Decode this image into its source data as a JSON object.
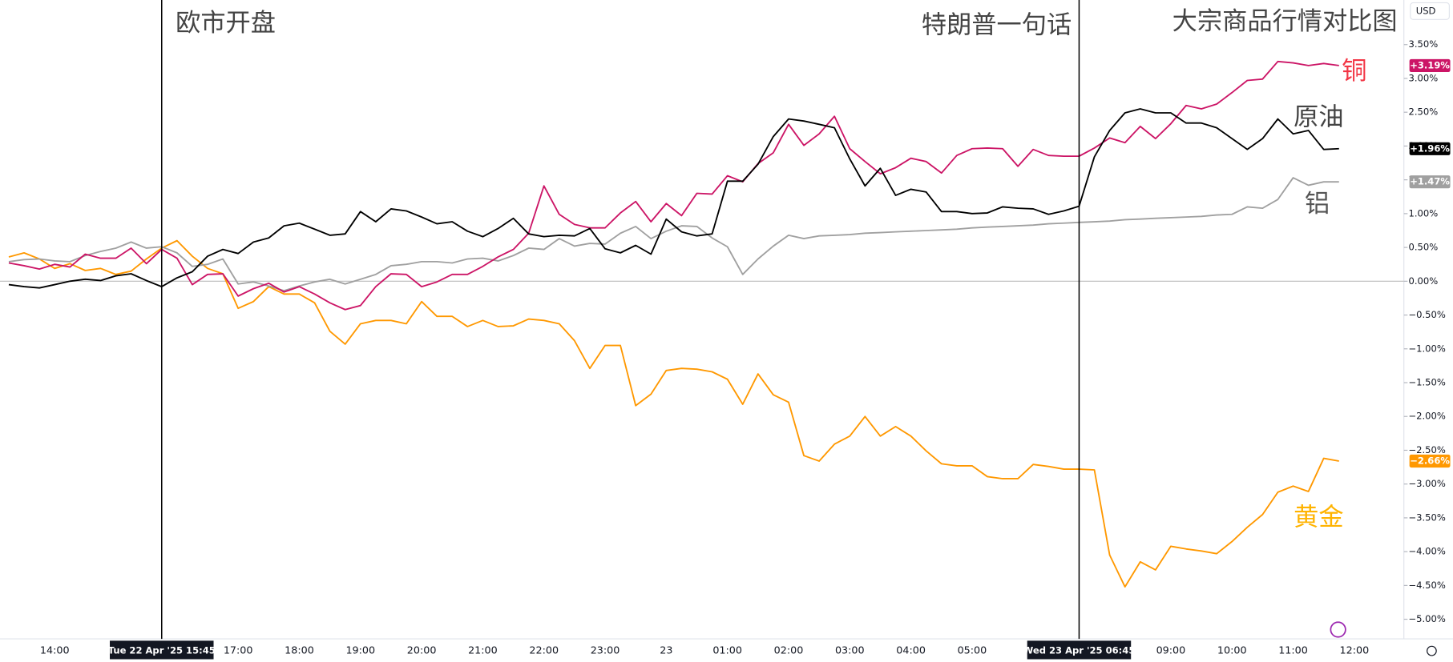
{
  "chart_data": {
    "type": "line",
    "title": "大宗商品行情对比图",
    "currency": "USD",
    "annotations": [
      {
        "text": "欧市开盘",
        "x": 10,
        "label": "Tue 22 Apr '25  15:45"
      },
      {
        "text": "特朗普一句话",
        "x": 70,
        "label": "Wed 23 Apr '25  06:45"
      }
    ],
    "categories": [
      null,
      null,
      null,
      "14:00",
      null,
      null,
      null,
      null,
      null,
      null,
      null,
      null,
      null,
      null,
      null,
      "17:00",
      null,
      null,
      null,
      "18:00",
      null,
      null,
      null,
      "19:00",
      null,
      null,
      null,
      "20:00",
      null,
      null,
      null,
      "21:00",
      null,
      null,
      null,
      "22:00",
      null,
      null,
      null,
      "23:00",
      null,
      null,
      null,
      "23",
      null,
      null,
      null,
      "01:00",
      null,
      null,
      null,
      "02:00",
      null,
      null,
      null,
      "03:00",
      null,
      null,
      null,
      "04:00",
      null,
      null,
      null,
      "05:00",
      null,
      null,
      null,
      null,
      null,
      null,
      null,
      null,
      null,
      null,
      null,
      null,
      "09:00",
      null,
      null,
      null,
      "10:00",
      null,
      null,
      null,
      "11:00",
      null,
      null,
      null,
      "12:00"
    ],
    "series": [
      {
        "name": "黄金",
        "color": "#ff9800",
        "label_color": "#ffb300",
        "last_label": "−2.66%",
        "values": [
          0.36,
          0.42,
          0.33,
          0.19,
          0.26,
          0.16,
          0.19,
          0.1,
          0.15,
          0.33,
          0.49,
          0.6,
          0.37,
          0.19,
          0.11,
          -0.4,
          -0.3,
          -0.08,
          -0.19,
          -0.19,
          -0.32,
          -0.74,
          -0.93,
          -0.63,
          -0.58,
          -0.58,
          -0.63,
          -0.3,
          -0.52,
          -0.52,
          -0.67,
          -0.58,
          -0.67,
          -0.66,
          -0.56,
          -0.58,
          -0.63,
          -0.88,
          -1.29,
          -0.95,
          -0.95,
          -1.84,
          -1.67,
          -1.32,
          -1.29,
          -1.3,
          -1.34,
          -1.45,
          -1.82,
          -1.37,
          -1.68,
          -1.79,
          -2.58,
          -2.66,
          -2.41,
          -2.29,
          -2.0,
          -2.29,
          -2.15,
          -2.29,
          -2.51,
          -2.7,
          -2.73,
          -2.73,
          -2.89,
          -2.92,
          -2.92,
          -2.71,
          -2.74,
          -2.78,
          -2.78,
          -2.79,
          -4.05,
          -4.52,
          -4.15,
          -4.27,
          -3.92,
          -3.96,
          -3.99,
          -4.03,
          -3.85,
          -3.64,
          -3.45,
          -3.12,
          -3.03,
          -3.11,
          -2.62,
          -2.66,
          null
        ]
      },
      {
        "name": "铝",
        "color": "#a0a0a0",
        "label_color": "#555555",
        "last_label": "+1.47%",
        "values": [
          0.29,
          0.32,
          0.33,
          0.3,
          0.29,
          0.38,
          0.44,
          0.49,
          0.58,
          0.49,
          0.51,
          0.42,
          0.22,
          0.25,
          0.33,
          -0.04,
          -0.01,
          -0.07,
          -0.14,
          -0.07,
          -0.01,
          0.03,
          -0.04,
          0.03,
          0.1,
          0.23,
          0.25,
          0.29,
          0.29,
          0.27,
          0.33,
          0.34,
          0.3,
          0.38,
          0.49,
          0.47,
          0.63,
          0.52,
          0.56,
          0.55,
          0.71,
          0.81,
          0.63,
          0.74,
          0.82,
          0.81,
          0.64,
          0.51,
          0.1,
          0.33,
          0.52,
          0.68,
          0.63,
          0.67,
          0.68,
          0.69,
          0.71,
          0.72,
          0.73,
          0.74,
          0.75,
          0.76,
          0.77,
          0.79,
          0.8,
          0.81,
          0.82,
          0.83,
          0.85,
          0.86,
          0.87,
          0.88,
          0.89,
          0.91,
          0.92,
          0.93,
          0.94,
          0.95,
          0.96,
          0.98,
          0.99,
          1.1,
          1.08,
          1.21,
          1.53,
          1.42,
          1.47,
          1.47,
          null
        ]
      },
      {
        "name": "铜",
        "color": "#cc1566",
        "label_color": "#f23645",
        "last_label": "+3.19%",
        "values": [
          0.27,
          0.23,
          0.18,
          0.25,
          0.21,
          0.4,
          0.34,
          0.34,
          0.49,
          0.26,
          0.47,
          0.34,
          -0.05,
          0.1,
          0.11,
          -0.22,
          -0.11,
          -0.03,
          -0.16,
          -0.08,
          -0.19,
          -0.32,
          -0.42,
          -0.36,
          -0.08,
          0.11,
          0.1,
          -0.08,
          -0.01,
          0.1,
          0.1,
          0.22,
          0.36,
          0.47,
          0.71,
          1.41,
          0.99,
          0.84,
          0.79,
          0.79,
          1.01,
          1.18,
          0.88,
          1.15,
          0.97,
          1.3,
          1.29,
          1.56,
          1.47,
          1.74,
          1.9,
          2.32,
          2.01,
          2.18,
          2.44,
          1.96,
          1.77,
          1.59,
          1.68,
          1.82,
          1.77,
          1.6,
          1.86,
          1.96,
          1.97,
          1.96,
          1.7,
          1.95,
          1.86,
          1.85,
          1.85,
          1.97,
          2.12,
          2.05,
          2.29,
          2.11,
          2.33,
          2.6,
          2.55,
          2.62,
          2.79,
          2.97,
          2.99,
          3.25,
          3.23,
          3.19,
          3.22,
          3.19,
          null
        ]
      },
      {
        "name": "原油",
        "color": "#000000",
        "label_color": "#444444",
        "last_label": "+1.96%",
        "values": [
          -0.05,
          -0.08,
          -0.1,
          -0.05,
          0.0,
          0.03,
          0.01,
          0.08,
          0.11,
          0.01,
          -0.08,
          0.05,
          0.14,
          0.37,
          0.47,
          0.41,
          0.58,
          0.64,
          0.82,
          0.86,
          0.77,
          0.68,
          0.7,
          1.03,
          0.88,
          1.07,
          1.04,
          0.95,
          0.85,
          0.88,
          0.74,
          0.66,
          0.78,
          0.93,
          0.7,
          0.66,
          0.68,
          0.67,
          0.78,
          0.48,
          0.42,
          0.53,
          0.4,
          0.92,
          0.73,
          0.67,
          0.7,
          1.48,
          1.48,
          1.73,
          2.14,
          2.4,
          2.37,
          2.32,
          2.27,
          1.81,
          1.41,
          1.67,
          1.27,
          1.36,
          1.32,
          1.03,
          1.03,
          1.0,
          1.01,
          1.1,
          1.08,
          1.07,
          0.99,
          1.04,
          1.11,
          1.84,
          2.23,
          2.49,
          2.55,
          2.49,
          2.49,
          2.34,
          2.34,
          2.27,
          2.11,
          1.95,
          2.11,
          2.4,
          2.18,
          2.23,
          1.95,
          1.96,
          null
        ]
      }
    ],
    "ylim": [
      -5.29,
      4.16
    ],
    "baseline": 0,
    "yticks": [
      {
        "value": 3.5,
        "label": "3.50%"
      },
      {
        "value": 3.0,
        "label": "3.00%"
      },
      {
        "value": 2.5,
        "label": "2.50%"
      },
      {
        "value": 2.0,
        "label": "2.00%"
      },
      {
        "value": 1.5,
        "label": "1.50%"
      },
      {
        "value": 1.0,
        "label": "1.00%"
      },
      {
        "value": 0.5,
        "label": "0.50%"
      },
      {
        "value": 0,
        "label": "0.00%"
      },
      {
        "value": -0.5,
        "label": "−0.50%"
      },
      {
        "value": -1.0,
        "label": "−1.00%"
      },
      {
        "value": -1.5,
        "label": "−1.50%"
      },
      {
        "value": -2.0,
        "label": "−2.00%"
      },
      {
        "value": -2.5,
        "label": "−2.50%"
      },
      {
        "value": -3.0,
        "label": "−3.00%"
      },
      {
        "value": -3.5,
        "label": "−3.50%"
      },
      {
        "value": -4.0,
        "label": "−4.00%"
      },
      {
        "value": -4.5,
        "label": "−4.50%"
      },
      {
        "value": -5.0,
        "label": "−5.00%"
      }
    ],
    "grid": false
  }
}
